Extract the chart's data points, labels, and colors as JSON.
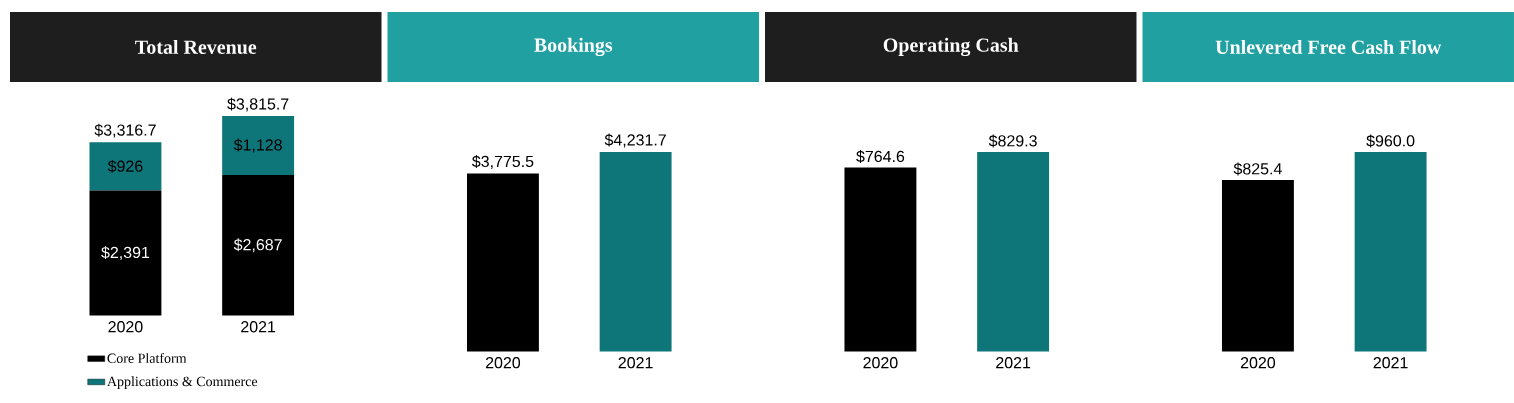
{
  "chart_data": [
    {
      "type": "bar",
      "title": "Total Revenue",
      "categories": [
        "2020",
        "2021"
      ],
      "stacked": true,
      "legend": "bottom",
      "series": [
        {
          "name": "Core Platform",
          "color": "#000000",
          "values": [
            2390.7,
            2687.4
          ],
          "value_labels": [
            "$2,391",
            "$2,687"
          ]
        },
        {
          "name": "Applications & Commerce",
          "color": "#0e7579",
          "values": [
            926.0,
            1128.3
          ],
          "value_labels": [
            "$926",
            "$1,128"
          ]
        }
      ],
      "totals": [
        "$3,316.7",
        "$3,815.7"
      ]
    },
    {
      "type": "bar",
      "title": "Bookings",
      "categories": [
        "2020",
        "2021"
      ],
      "values": [
        3775.5,
        4231.7
      ],
      "colors": [
        "#000000",
        "#0e7579"
      ],
      "value_labels": [
        "$3,775.5",
        "$4,231.7"
      ]
    },
    {
      "type": "bar",
      "title": "Operating Cash",
      "categories": [
        "2020",
        "2021"
      ],
      "values": [
        764.6,
        829.3
      ],
      "colors": [
        "#000000",
        "#0e7579"
      ],
      "value_labels": [
        "$764.6",
        "$829.3"
      ]
    },
    {
      "type": "bar",
      "title": "Unlevered Free Cash Flow",
      "categories": [
        "2020",
        "2021"
      ],
      "values": [
        825.4,
        960.0
      ],
      "colors": [
        "#000000",
        "#0e7579"
      ],
      "value_labels": [
        "$825.4",
        "$960.0"
      ]
    }
  ]
}
